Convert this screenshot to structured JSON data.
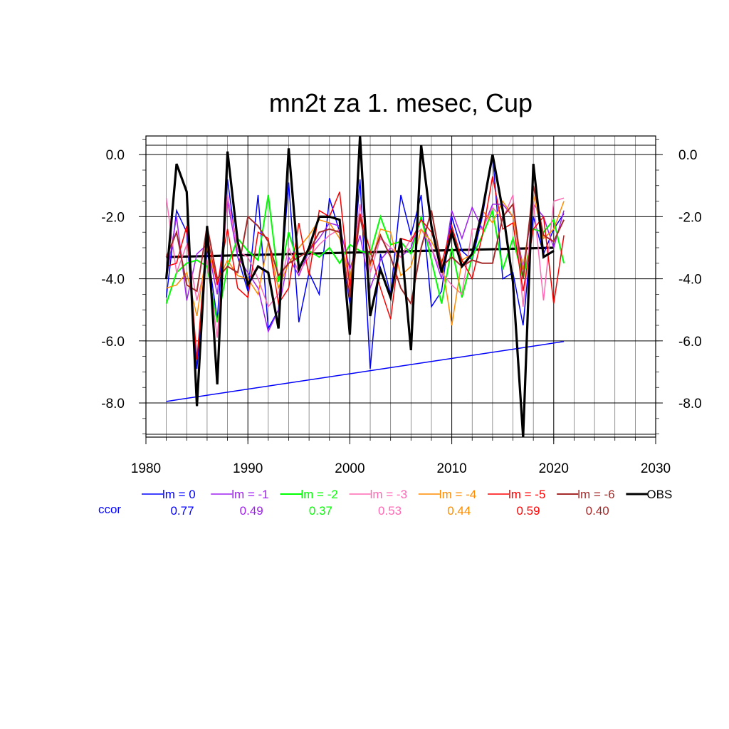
{
  "chart_data": {
    "type": "line",
    "title": "mn2t za 1. mesec, Cup",
    "xlabel": "",
    "ylabel": "",
    "xlim": [
      1980,
      2030
    ],
    "ylim": [
      -9.1,
      0.6
    ],
    "x_ticks": [
      1980,
      1990,
      2000,
      2010,
      2020,
      2030
    ],
    "y_ticks": [
      0.0,
      -2.0,
      -4.0,
      -6.0,
      -8.0
    ],
    "y_tick_labels": [
      "0.0",
      "-2.0",
      "-4.0",
      "-6.0",
      "-8.0"
    ],
    "y_axis_both_sides": true,
    "grid": true,
    "x": [
      1982,
      1983,
      1984,
      1985,
      1986,
      1987,
      1988,
      1989,
      1990,
      1991,
      1992,
      1993,
      1994,
      1995,
      1996,
      1997,
      1998,
      1999,
      2000,
      2001,
      2002,
      2003,
      2004,
      2005,
      2006,
      2007,
      2008,
      2009,
      2010,
      2011,
      2012,
      2013,
      2014,
      2015,
      2016,
      2017,
      2018,
      2019,
      2020,
      2021
    ],
    "series": [
      {
        "name": "lm = 0",
        "color": "#0000ff",
        "width": 1.5,
        "values": [
          -4.6,
          -1.8,
          -2.5,
          -6.9,
          -3.0,
          -5.3,
          -0.8,
          -3.3,
          -4.4,
          -1.3,
          -5.6,
          -5.0,
          -0.9,
          -5.4,
          -3.8,
          -4.5,
          -1.4,
          -2.5,
          -4.8,
          -0.8,
          -6.9,
          -3.2,
          -4.5,
          -1.3,
          -2.6,
          -1.3,
          -4.9,
          -4.4,
          -2.0,
          -3.1,
          -3.4,
          -2.0,
          0.0,
          -4.0,
          -3.8,
          -5.5,
          -2.0,
          -3.2,
          -2.4,
          -1.9
        ]
      },
      {
        "name": "lm = -1",
        "color": "#a020f0",
        "width": 1.5,
        "values": [
          -4.0,
          -2.0,
          -4.7,
          -3.2,
          -2.9,
          -4.5,
          -1.5,
          -3.3,
          -3.8,
          -4.3,
          -5.7,
          -5.0,
          -3.3,
          -3.9,
          -3.1,
          -2.7,
          -2.2,
          -2.3,
          -3.7,
          -2.6,
          -4.3,
          -3.4,
          -3.0,
          -3.3,
          -3.0,
          -2.0,
          -3.0,
          -4.0,
          -1.8,
          -2.7,
          -1.7,
          -2.4,
          -1.6,
          -1.6,
          -2.0,
          -3.6,
          -1.6,
          -2.0,
          -3.0,
          -1.8
        ]
      },
      {
        "name": "lm = -2",
        "color": "#00ff00",
        "width": 2,
        "values": [
          -4.8,
          -3.8,
          -3.5,
          -3.4,
          -3.6,
          -5.4,
          -3.6,
          -2.7,
          -3.1,
          -3.4,
          -1.3,
          -4.1,
          -2.5,
          -3.6,
          -3.1,
          -3.3,
          -3.0,
          -3.5,
          -2.9,
          -3.1,
          -3.2,
          -2.0,
          -2.9,
          -2.8,
          -3.2,
          -2.0,
          -3.4,
          -4.8,
          -3.0,
          -4.6,
          -3.3,
          -2.6,
          -1.8,
          -3.7,
          -2.7,
          -4.0,
          -2.4,
          -2.5,
          -2.1,
          -3.5
        ]
      },
      {
        "name": "lm = -3",
        "color": "#ff69b4",
        "width": 1.5,
        "values": [
          -1.4,
          -3.8,
          -2.9,
          -4.7,
          -3.4,
          -5.9,
          -1.3,
          -3.1,
          -3.3,
          -4.0,
          -4.9,
          -4.5,
          -3.0,
          -3.8,
          -3.3,
          -2.9,
          -2.6,
          -2.4,
          -4.2,
          -1.6,
          -3.8,
          -2.7,
          -3.0,
          -3.3,
          -2.7,
          -2.4,
          -3.0,
          -3.8,
          -4.2,
          -4.5,
          -2.4,
          -2.4,
          -1.7,
          -2.1,
          -1.3,
          -4.9,
          -1.5,
          -4.7,
          -1.5,
          -1.4
        ]
      },
      {
        "name": "lm = -4",
        "color": "#ff8c00",
        "width": 1.5,
        "values": [
          -4.3,
          -4.2,
          -3.8,
          -5.2,
          -3.0,
          -4.1,
          -3.4,
          -3.9,
          -4.0,
          -4.5,
          -2.8,
          -4.3,
          -3.5,
          -3.0,
          -2.6,
          -2.1,
          -2.2,
          -2.7,
          -4.0,
          -2.0,
          -3.6,
          -2.4,
          -2.5,
          -3.9,
          -3.6,
          -2.4,
          -2.8,
          -3.4,
          -5.5,
          -3.4,
          -3.2,
          -1.8,
          -2.2,
          -1.5,
          -2.0,
          -3.7,
          -1.3,
          -2.7,
          -2.4,
          -1.5
        ]
      },
      {
        "name": "lm = -5",
        "color": "#ff0000",
        "width": 1.5,
        "values": [
          -3.6,
          -3.5,
          -2.3,
          -6.6,
          -2.6,
          -4.2,
          -2.4,
          -4.3,
          -4.6,
          -2.5,
          -2.7,
          -4.8,
          -4.3,
          -2.2,
          -3.9,
          -1.8,
          -2.0,
          -1.2,
          -4.3,
          -1.9,
          -3.1,
          -4.3,
          -5.3,
          -2.7,
          -2.8,
          -2.1,
          -2.5,
          -3.5,
          -2.3,
          -3.4,
          -4.0,
          -2.6,
          -0.7,
          -2.4,
          -2.2,
          -4.4,
          -2.4,
          -2.0,
          -4.8,
          -2.6
        ]
      },
      {
        "name": "lm = -6",
        "color": "#a52a2a",
        "width": 2,
        "values": [
          -3.3,
          -2.5,
          -4.2,
          -4.4,
          -2.3,
          -4.0,
          -3.6,
          -3.8,
          -2.0,
          -2.3,
          -2.8,
          -3.9,
          -3.5,
          -3.3,
          -3.1,
          -2.5,
          -2.4,
          -2.5,
          -4.6,
          -2.0,
          -3.5,
          -2.6,
          -3.3,
          -4.3,
          -4.8,
          -3.0,
          -1.8,
          -3.6,
          -3.3,
          -3.6,
          -3.4,
          -3.5,
          -3.5,
          -2.0,
          -1.6,
          -4.0,
          -1.0,
          -2.6,
          -2.8,
          -2.1
        ]
      },
      {
        "name": "OBS",
        "color": "#000000",
        "width": 3.2,
        "values": [
          -4.0,
          -0.3,
          -1.2,
          -8.1,
          -2.3,
          -7.4,
          0.1,
          -2.8,
          -4.2,
          -3.6,
          -3.8,
          -5.6,
          0.2,
          -3.7,
          -3.0,
          -2.0,
          -2.0,
          -2.1,
          -5.8,
          0.6,
          -5.2,
          -3.7,
          -4.6,
          -2.7,
          -6.3,
          0.3,
          -2.3,
          -3.8,
          -2.5,
          -3.6,
          -3.2,
          -1.8,
          0.0,
          -1.8,
          -4.1,
          -9.1,
          -0.3,
          -3.3,
          -3.1,
          null
        ]
      }
    ],
    "trend_lines": [
      {
        "series": "lm = 0",
        "color": "#0000ff",
        "width": 1.5,
        "x": [
          1982,
          2021
        ],
        "y": [
          -7.95,
          -6.02
        ]
      },
      {
        "series": "OBS",
        "color": "#000000",
        "width": 3.2,
        "x": [
          1982,
          2020
        ],
        "y": [
          -3.3,
          -3.0
        ]
      }
    ],
    "legend": {
      "placement": "bottom",
      "ccor_label": "ccor",
      "ccor_label_color": "#0000ff",
      "entries": [
        {
          "label": "lm = 0",
          "ccor": "0.77",
          "color": "#0000ff",
          "line_width": 1.5
        },
        {
          "label": "lm = -1",
          "ccor": "0.49",
          "color": "#a020f0",
          "line_width": 1.5
        },
        {
          "label": "lm = -2",
          "ccor": "0.37",
          "color": "#00ff00",
          "line_width": 2
        },
        {
          "label": "lm = -3",
          "ccor": "0.53",
          "color": "#ff69b4",
          "line_width": 1.5
        },
        {
          "label": "lm = -4",
          "ccor": "0.44",
          "color": "#ff8c00",
          "line_width": 1.5
        },
        {
          "label": "lm = -5",
          "ccor": "0.59",
          "color": "#ff0000",
          "line_width": 1.5
        },
        {
          "label": "lm = -6",
          "ccor": "0.40",
          "color": "#a52a2a",
          "line_width": 2
        },
        {
          "label": "OBS",
          "ccor": "",
          "color": "#000000",
          "line_width": 3
        }
      ]
    }
  }
}
